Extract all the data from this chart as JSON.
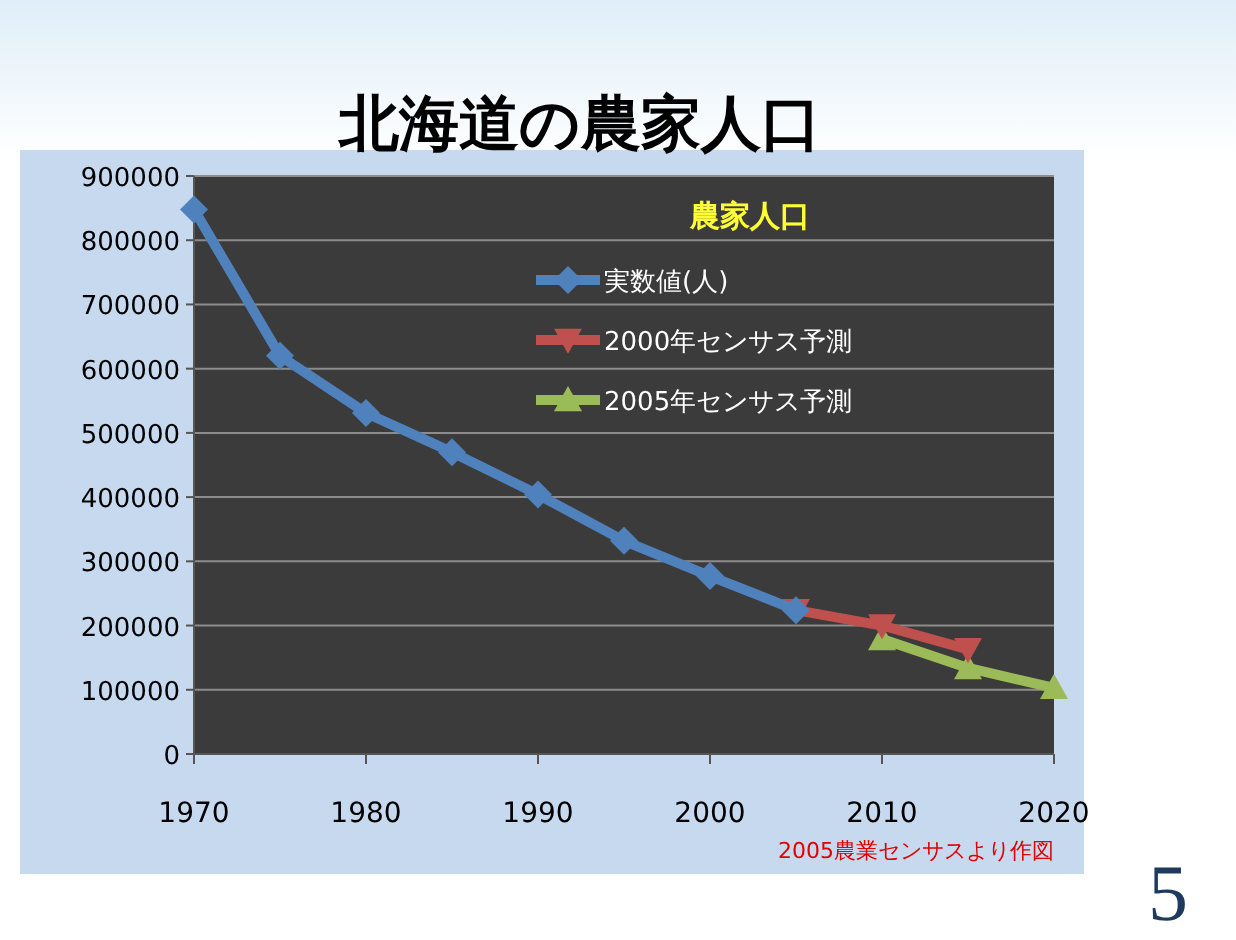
{
  "chart_data": {
    "type": "line",
    "title": "北海道の農家人口",
    "legend_title": "農家人口",
    "annotations": [
      "2005農業センサスより作図",
      "5"
    ],
    "xlim": [
      1970,
      2020
    ],
    "xticks": [
      1970,
      1980,
      1990,
      2000,
      2010,
      2020
    ],
    "ylim": [
      0,
      900000
    ],
    "yticks": [
      0,
      100000,
      200000,
      300000,
      400000,
      500000,
      600000,
      700000,
      800000,
      900000
    ],
    "grid": "y",
    "legend": "top right",
    "line_style": "solid",
    "series": [
      {
        "name": "実数値(人)",
        "color": "#4f81bd",
        "marker": "diamond",
        "x": [
          1970,
          1975,
          1980,
          1985,
          1990,
          1995,
          2000,
          2005
        ],
        "values": [
          848000,
          620000,
          531000,
          470000,
          404000,
          332000,
          277000,
          224000
        ]
      },
      {
        "name": "2000年センサス予測",
        "color": "#c0504d",
        "marker": "triangle-down",
        "x": [
          2005,
          2010,
          2015
        ],
        "values": [
          224000,
          200000,
          163000
        ]
      },
      {
        "name": "2005年センサス予測",
        "color": "#9bbb59",
        "marker": "triangle",
        "x": [
          2010,
          2015,
          2020
        ],
        "values": [
          179000,
          134000,
          103000
        ]
      }
    ]
  }
}
